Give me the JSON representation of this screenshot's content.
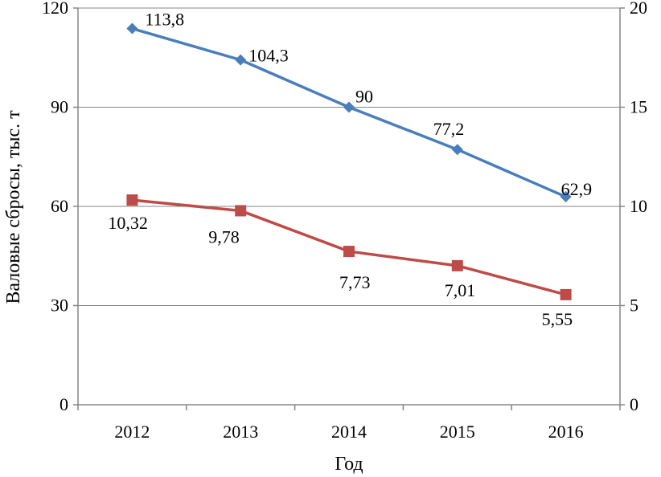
{
  "chart_data": {
    "type": "line",
    "title": "",
    "xlabel": "Год",
    "ylabel": "Валовые сбросы, тыс. т",
    "categories": [
      "2012",
      "2013",
      "2014",
      "2015",
      "2016"
    ],
    "y_left": {
      "lim": [
        0,
        120
      ],
      "ticks": [
        0,
        30,
        60,
        90,
        120
      ],
      "tick_labels": [
        "0",
        "30",
        "60",
        "90",
        "120"
      ]
    },
    "y_right": {
      "lim": [
        0,
        20
      ],
      "ticks": [
        0,
        5,
        10,
        15,
        20
      ],
      "tick_labels": [
        "0",
        "5",
        "10",
        "15",
        "20"
      ]
    },
    "grid": true,
    "legend": "none",
    "series": [
      {
        "axis": "left",
        "color": "#4a7ebb",
        "marker": "diamond",
        "values": [
          113.8,
          104.3,
          90,
          77.2,
          62.9
        ],
        "labels": [
          "113,8",
          "104,3",
          "90",
          "77,2",
          "62,9"
        ]
      },
      {
        "axis": "right",
        "color": "#be4b48",
        "marker": "square",
        "values": [
          10.32,
          9.78,
          7.73,
          7.01,
          5.55
        ],
        "labels": [
          "10,32",
          "9,78",
          "7,73",
          "7,01",
          "5,55"
        ]
      }
    ]
  }
}
